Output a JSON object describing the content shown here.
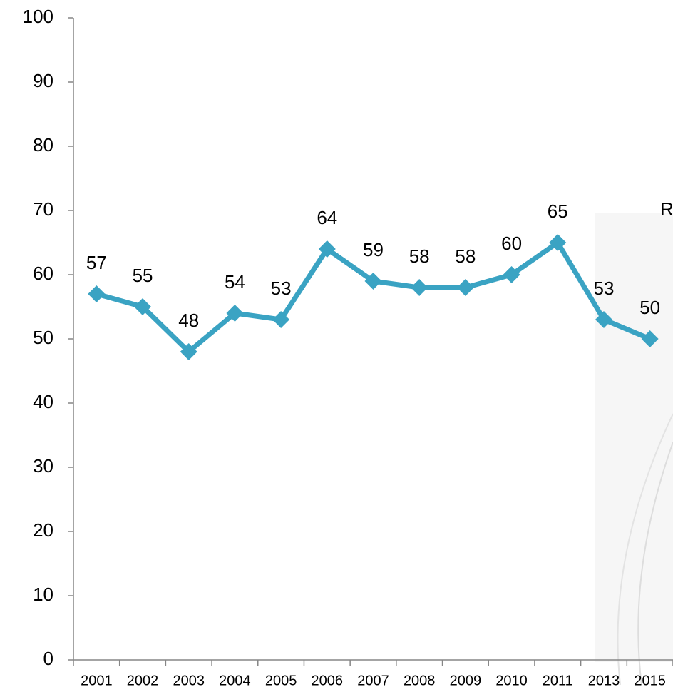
{
  "chart_data": {
    "type": "line",
    "categories": [
      "2001",
      "2002",
      "2003",
      "2004",
      "2005",
      "2006",
      "2007",
      "2008",
      "2009",
      "2010",
      "2011",
      "2013",
      "2015"
    ],
    "values": [
      57,
      55,
      48,
      54,
      53,
      64,
      59,
      58,
      58,
      60,
      65,
      53,
      50
    ],
    "color": "#3aa3c3",
    "ylim": [
      0,
      100
    ],
    "yticks": [
      0,
      10,
      20,
      30,
      40,
      50,
      60,
      70,
      80,
      90,
      100
    ],
    "annotation": "R",
    "grid": false
  }
}
